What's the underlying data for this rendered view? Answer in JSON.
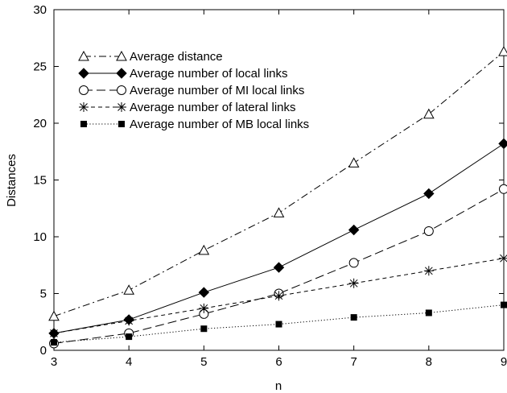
{
  "chart_data": {
    "type": "line",
    "title": "",
    "xlabel": "n",
    "ylabel": "Distances",
    "xlim": [
      3,
      9
    ],
    "ylim": [
      0,
      30
    ],
    "x_ticks": [
      3,
      4,
      5,
      6,
      7,
      8,
      9
    ],
    "y_ticks": [
      0,
      5,
      10,
      15,
      20,
      25,
      30
    ],
    "grid": false,
    "legend_position": "top-left",
    "x": [
      3,
      4,
      5,
      6,
      7,
      8,
      9
    ],
    "series": [
      {
        "name": "Average distance",
        "values": [
          3.0,
          5.3,
          8.8,
          12.1,
          16.5,
          20.8,
          26.3
        ],
        "marker": "triangle-open",
        "dash": "dash-dot",
        "color": "#000000"
      },
      {
        "name": "Average number of local links",
        "values": [
          1.5,
          2.7,
          5.1,
          7.3,
          10.6,
          13.8,
          18.2
        ],
        "marker": "diamond-filled",
        "dash": "solid",
        "color": "#000000"
      },
      {
        "name": "Average number of MI local links",
        "values": [
          0.6,
          1.5,
          3.2,
          5.0,
          7.7,
          10.5,
          14.2
        ],
        "marker": "circle-open",
        "dash": "long-dash",
        "color": "#000000"
      },
      {
        "name": "Average number of lateral links",
        "values": [
          1.5,
          2.6,
          3.7,
          4.8,
          5.9,
          7.0,
          8.1
        ],
        "marker": "asterisk",
        "dash": "short-dash",
        "color": "#000000"
      },
      {
        "name": "Average number of MB local links",
        "values": [
          0.7,
          1.2,
          1.9,
          2.3,
          2.9,
          3.3,
          4.0
        ],
        "marker": "square-filled",
        "dash": "dotted",
        "color": "#000000"
      }
    ]
  }
}
